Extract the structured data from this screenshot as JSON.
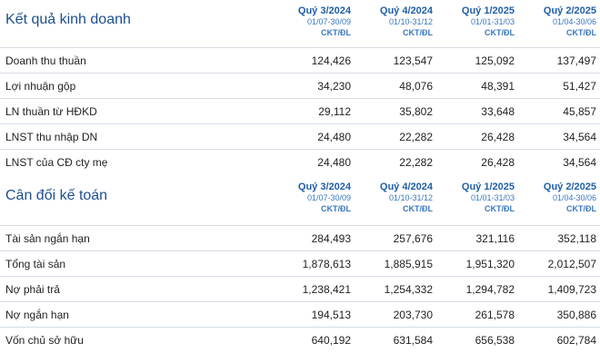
{
  "periods": [
    {
      "quarter": "Quý 3/2024",
      "range": "01/07-30/09",
      "unit": "CKT/ĐL"
    },
    {
      "quarter": "Quý 4/2024",
      "range": "01/10-31/12",
      "unit": "CKT/ĐL"
    },
    {
      "quarter": "Quý 1/2025",
      "range": "01/01-31/03",
      "unit": "CKT/ĐL"
    },
    {
      "quarter": "Quý 2/2025",
      "range": "01/04-30/06",
      "unit": "CKT/ĐL"
    }
  ],
  "income": {
    "title": "Kết quả kinh doanh",
    "rows": [
      {
        "label": "Doanh thu thuần",
        "values": [
          "124,426",
          "123,547",
          "125,092",
          "137,497"
        ]
      },
      {
        "label": "Lợi nhuận gộp",
        "values": [
          "34,230",
          "48,076",
          "48,391",
          "51,427"
        ]
      },
      {
        "label": "LN thuần từ HĐKD",
        "values": [
          "29,112",
          "35,802",
          "33,648",
          "45,857"
        ]
      },
      {
        "label": "LNST thu nhập DN",
        "values": [
          "24,480",
          "22,282",
          "26,428",
          "34,564"
        ]
      },
      {
        "label": "LNST của CĐ cty mẹ",
        "values": [
          "24,480",
          "22,282",
          "26,428",
          "34,564"
        ]
      }
    ]
  },
  "balance": {
    "title": "Cân đối kế toán",
    "rows": [
      {
        "label": "Tài sản ngắn hạn",
        "values": [
          "284,493",
          "257,676",
          "321,116",
          "352,118"
        ]
      },
      {
        "label": "Tổng tài sản",
        "values": [
          "1,878,613",
          "1,885,915",
          "1,951,320",
          "2,012,507"
        ]
      },
      {
        "label": "Nợ phải trả",
        "values": [
          "1,238,421",
          "1,254,332",
          "1,294,782",
          "1,409,723"
        ]
      },
      {
        "label": "Nợ ngắn hạn",
        "values": [
          "194,513",
          "203,730",
          "261,578",
          "350,886"
        ]
      },
      {
        "label": "Vốn chủ sở hữu",
        "values": [
          "640,192",
          "631,584",
          "656,538",
          "602,784"
        ]
      }
    ]
  }
}
